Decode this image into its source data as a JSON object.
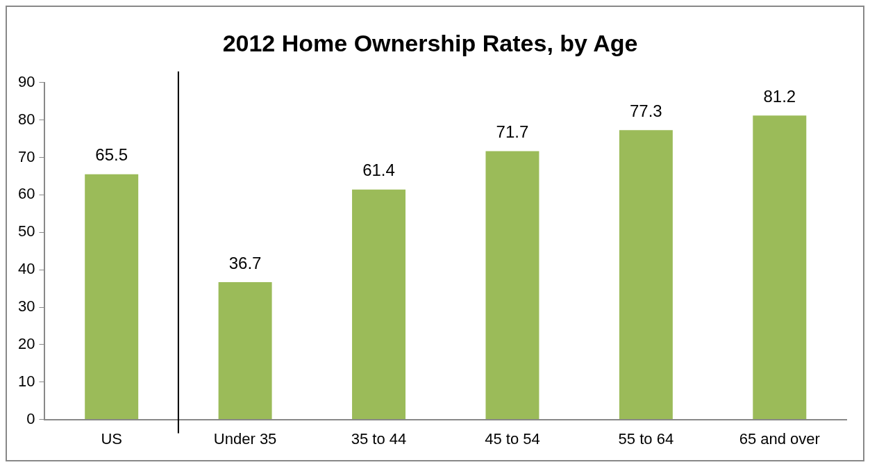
{
  "chart_data": {
    "type": "bar",
    "title": "2012 Home Ownership Rates, by Age",
    "categories": [
      "US",
      "Under 35",
      "35 to 44",
      "45 to 54",
      "55 to 64",
      "65 and over"
    ],
    "values": [
      65.5,
      36.7,
      61.4,
      71.7,
      77.3,
      81.2
    ],
    "color": "#9bbb59",
    "ylim": [
      0,
      90
    ],
    "yticks": [
      0,
      10,
      20,
      30,
      40,
      50,
      60,
      70,
      80,
      90
    ],
    "grid": false,
    "legend": false,
    "data_labels": true
  }
}
